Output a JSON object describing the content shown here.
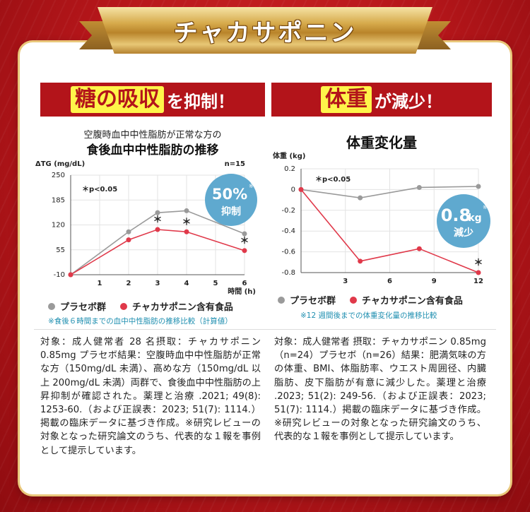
{
  "banner": {
    "title": "チャカサポニン"
  },
  "left": {
    "heading_highlight": "糖の吸収",
    "heading_rest": "を抑制！",
    "subtitle1": "空腹時血中中性脂肪が正常な方の",
    "subtitle2": "食後血中中性脂肪の推移",
    "badge_main": "50%",
    "badge_sub": "抑制",
    "badge_mark": "※",
    "legend": [
      "プラセボ群",
      "チャカサポニン含有食品"
    ],
    "note": "※食後６時間までの血中中性脂肪の推移比較（計算値）",
    "body": "対象：成人健常者 28 名摂取：チャカサポニン 0.85mg プラセボ結果：空腹時血中中性脂肪が正常な方（150mg/dL 未満）、高めな方（150mg/dL 以上 200mg/dL 未満）両群で、食後血中中性脂肪の上昇抑制が確認された。薬理と治療 .2021; 49(8): 1253-60.（および正誤表：2023; 51(7): 1114.）掲載の臨床データに基づき作成。※研究レビューの対象となった研究論文のうち、代表的な１報を事例として提示しています。"
  },
  "right": {
    "heading_highlight": "体重",
    "heading_rest": "が減少！",
    "title": "体重変化量",
    "badge_main": "0.8",
    "badge_unit": "kg",
    "badge_sub": "減少",
    "badge_mark": "※",
    "legend": [
      "プラセボ群",
      "チャカサポニン含有食品"
    ],
    "note": "※12 週間後までの体重変化量の推移比較",
    "body": "対象：成人健常者 摂取：チャカサポニン 0.85mg（n=24）プラセボ（n=26）結果：肥満気味の方の体重、BMI、体脂肪率、ウエスト周囲径、内臓脂肪、皮下脂肪が有意に減少した。薬理と治療 .2023; 51(2): 249-56.（および正誤表：2023; 51(7): 1114.）掲載の臨床データに基づき作成。※研究レビューの対象となった研究論文のうち、代表的な１報を事例として提示しています。"
  },
  "colors": {
    "placebo": "#9a9a9a",
    "treatment": "#e0394a",
    "badge": "#5fa9cf",
    "accent": "#b3141a"
  },
  "chart_data": [
    {
      "type": "line",
      "title": "食後血中中性脂肪の推移",
      "ylabel": "ΔTG (mg/dL)",
      "xlabel": "時間 (h)",
      "n_label": "n=15",
      "sig_label": "＊p<0.05",
      "x": [
        0,
        2,
        3,
        4,
        6
      ],
      "xticks": [
        "1",
        "2",
        "3",
        "4",
        "5",
        "6"
      ],
      "yticks": [
        "250",
        "185",
        "120",
        "55",
        "-10"
      ],
      "ylim": [
        -10,
        250
      ],
      "xlim": [
        0,
        6
      ],
      "series": [
        {
          "name": "プラセボ群",
          "values": [
            -10,
            102,
            152,
            157,
            97
          ]
        },
        {
          "name": "チャカサポニン含有食品",
          "values": [
            -10,
            81,
            108,
            102,
            53
          ]
        }
      ],
      "significant_x": [
        3,
        4,
        6
      ]
    },
    {
      "type": "line",
      "title": "体重変化量",
      "ylabel": "体重 (kg)",
      "sig_label": "＊p<0.05",
      "x": [
        0,
        4,
        8,
        12
      ],
      "xticks": [
        "3",
        "6",
        "9",
        "12"
      ],
      "yticks": [
        "0.2",
        "0",
        "-0.2",
        "-0.4",
        "-0.6",
        "-0.8"
      ],
      "ylim": [
        -0.8,
        0.2
      ],
      "xlim": [
        0,
        12
      ],
      "series": [
        {
          "name": "プラセボ群",
          "values": [
            0,
            -0.08,
            0.02,
            0.03
          ]
        },
        {
          "name": "チャカサポニン含有食品",
          "values": [
            0,
            -0.69,
            -0.57,
            -0.8
          ]
        }
      ],
      "significant_x": [
        12
      ]
    }
  ]
}
